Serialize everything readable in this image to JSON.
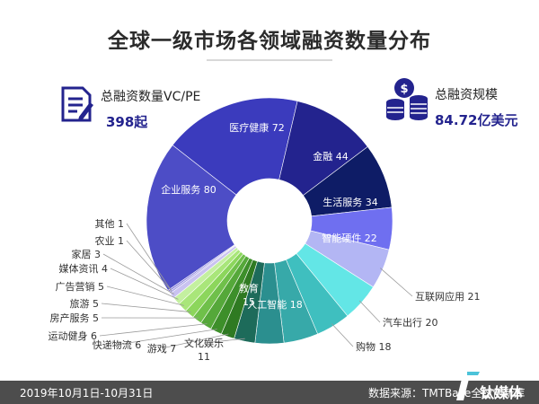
{
  "title": "全球一级市场各领域融资数量分布",
  "stats": {
    "left": {
      "label": "总融资数量VC/PE",
      "value": "398起",
      "icon": "document-icon"
    },
    "right": {
      "label": "总融资规模",
      "value": "84.72亿美元",
      "icon": "coin-stack-icon"
    }
  },
  "footer": {
    "date_range": "2019年10月1日-10月31日",
    "source": "数据来源：TMTBase全球创新库",
    "brand": "钛媒体"
  },
  "chart_data": {
    "type": "pie",
    "variant": "donut",
    "slices": [
      {
        "label": "医疗健康",
        "value": 72,
        "color": "#3b3bbd"
      },
      {
        "label": "金融",
        "value": 44,
        "color": "#23238e"
      },
      {
        "label": "生活服务",
        "value": 34,
        "color": "#0e1c66"
      },
      {
        "label": "智能硬件",
        "value": 22,
        "color": "#6f6ff0"
      },
      {
        "label": "互联网应用",
        "value": 21,
        "color": "#b3b6f4"
      },
      {
        "label": "汽车出行",
        "value": 20,
        "color": "#63e6e6"
      },
      {
        "label": "购物",
        "value": 18,
        "color": "#3fbfbf"
      },
      {
        "label": "人工智能",
        "value": 18,
        "color": "#37a9a9"
      },
      {
        "label": "教育",
        "value": 15,
        "color": "#2b8f8f"
      },
      {
        "label": "文化娱乐",
        "value": 11,
        "color": "#1d6b5a"
      },
      {
        "label": "游戏",
        "value": 7,
        "color": "#2f7a22"
      },
      {
        "label": "快递物流",
        "value": 6,
        "color": "#3d8f2a"
      },
      {
        "label": "运动健身",
        "value": 6,
        "color": "#55a83a"
      },
      {
        "label": "房产服务",
        "value": 5,
        "color": "#6fc04a"
      },
      {
        "label": "旅游",
        "value": 5,
        "color": "#8cd65c"
      },
      {
        "label": "广告营销",
        "value": 5,
        "color": "#a9e67a"
      },
      {
        "label": "媒体资讯",
        "value": 4,
        "color": "#c4f0a0"
      },
      {
        "label": "家居",
        "value": 3,
        "color": "#c9c2f0"
      },
      {
        "label": "农业",
        "value": 1,
        "color": "#a9a2e6"
      },
      {
        "label": "其他",
        "value": 1,
        "color": "#8e86dc"
      },
      {
        "label": "企业服务",
        "value": 80,
        "color": "#4d4dc6"
      }
    ]
  }
}
